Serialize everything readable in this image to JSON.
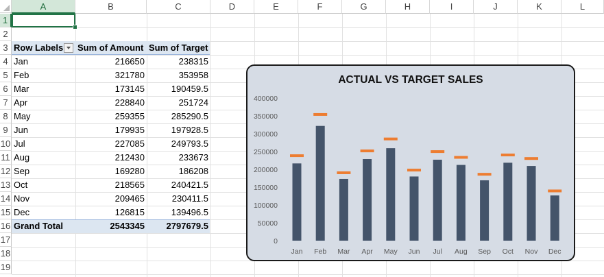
{
  "sheet": {
    "columns": [
      "A",
      "B",
      "C",
      "D",
      "E",
      "F",
      "G",
      "H",
      "I",
      "J",
      "K",
      "L"
    ],
    "rows": [
      "1",
      "2",
      "3",
      "4",
      "5",
      "6",
      "7",
      "8",
      "9",
      "10",
      "11",
      "12",
      "13",
      "14",
      "15",
      "16",
      "17",
      "18",
      "19"
    ],
    "selected_cell": "A1"
  },
  "pivot": {
    "headers": [
      "Row Labels",
      "Sum of Amount",
      "Sum of Target"
    ],
    "rows": [
      {
        "label": "Jan",
        "amount": "216650",
        "target": "238315"
      },
      {
        "label": "Feb",
        "amount": "321780",
        "target": "353958"
      },
      {
        "label": "Mar",
        "amount": "173145",
        "target": "190459.5"
      },
      {
        "label": "Apr",
        "amount": "228840",
        "target": "251724"
      },
      {
        "label": "May",
        "amount": "259355",
        "target": "285290.5"
      },
      {
        "label": "Jun",
        "amount": "179935",
        "target": "197928.5"
      },
      {
        "label": "Jul",
        "amount": "227085",
        "target": "249793.5"
      },
      {
        "label": "Aug",
        "amount": "212430",
        "target": "233673"
      },
      {
        "label": "Sep",
        "amount": "169280",
        "target": "186208"
      },
      {
        "label": "Oct",
        "amount": "218565",
        "target": "240421.5"
      },
      {
        "label": "Nov",
        "amount": "209465",
        "target": "230411.5"
      },
      {
        "label": "Dec",
        "amount": "126815",
        "target": "139496.5"
      }
    ],
    "total": {
      "label": "Grand Total",
      "amount": "2543345",
      "target": "2797679.5"
    }
  },
  "chart_data": {
    "type": "bar",
    "title": "ACTUAL VS TARGET SALES",
    "categories": [
      "Jan",
      "Feb",
      "Mar",
      "Apr",
      "May",
      "Jun",
      "Jul",
      "Aug",
      "Sep",
      "Oct",
      "Nov",
      "Dec"
    ],
    "series": [
      {
        "values": [
          216650,
          321780,
          173145,
          228840,
          259355,
          179935,
          227085,
          212430,
          169280,
          218565,
          209465,
          126815
        ],
        "color": "#44546a",
        "style": "bar"
      },
      {
        "values": [
          238315,
          353958,
          190459.5,
          251724,
          285290.5,
          197928.5,
          249793.5,
          233673,
          186208,
          240421.5,
          230411.5,
          139496.5
        ],
        "color": "#ed7d31",
        "style": "dash-marker"
      }
    ],
    "ylim": [
      0,
      400000
    ],
    "yticks": [
      "400000",
      "350000",
      "300000",
      "250000",
      "200000",
      "150000",
      "100000",
      "50000",
      "0"
    ],
    "ytick_values": [
      400000,
      350000,
      300000,
      250000,
      200000,
      150000,
      100000,
      50000,
      0
    ],
    "grid": false,
    "background": "#d6dce5"
  }
}
